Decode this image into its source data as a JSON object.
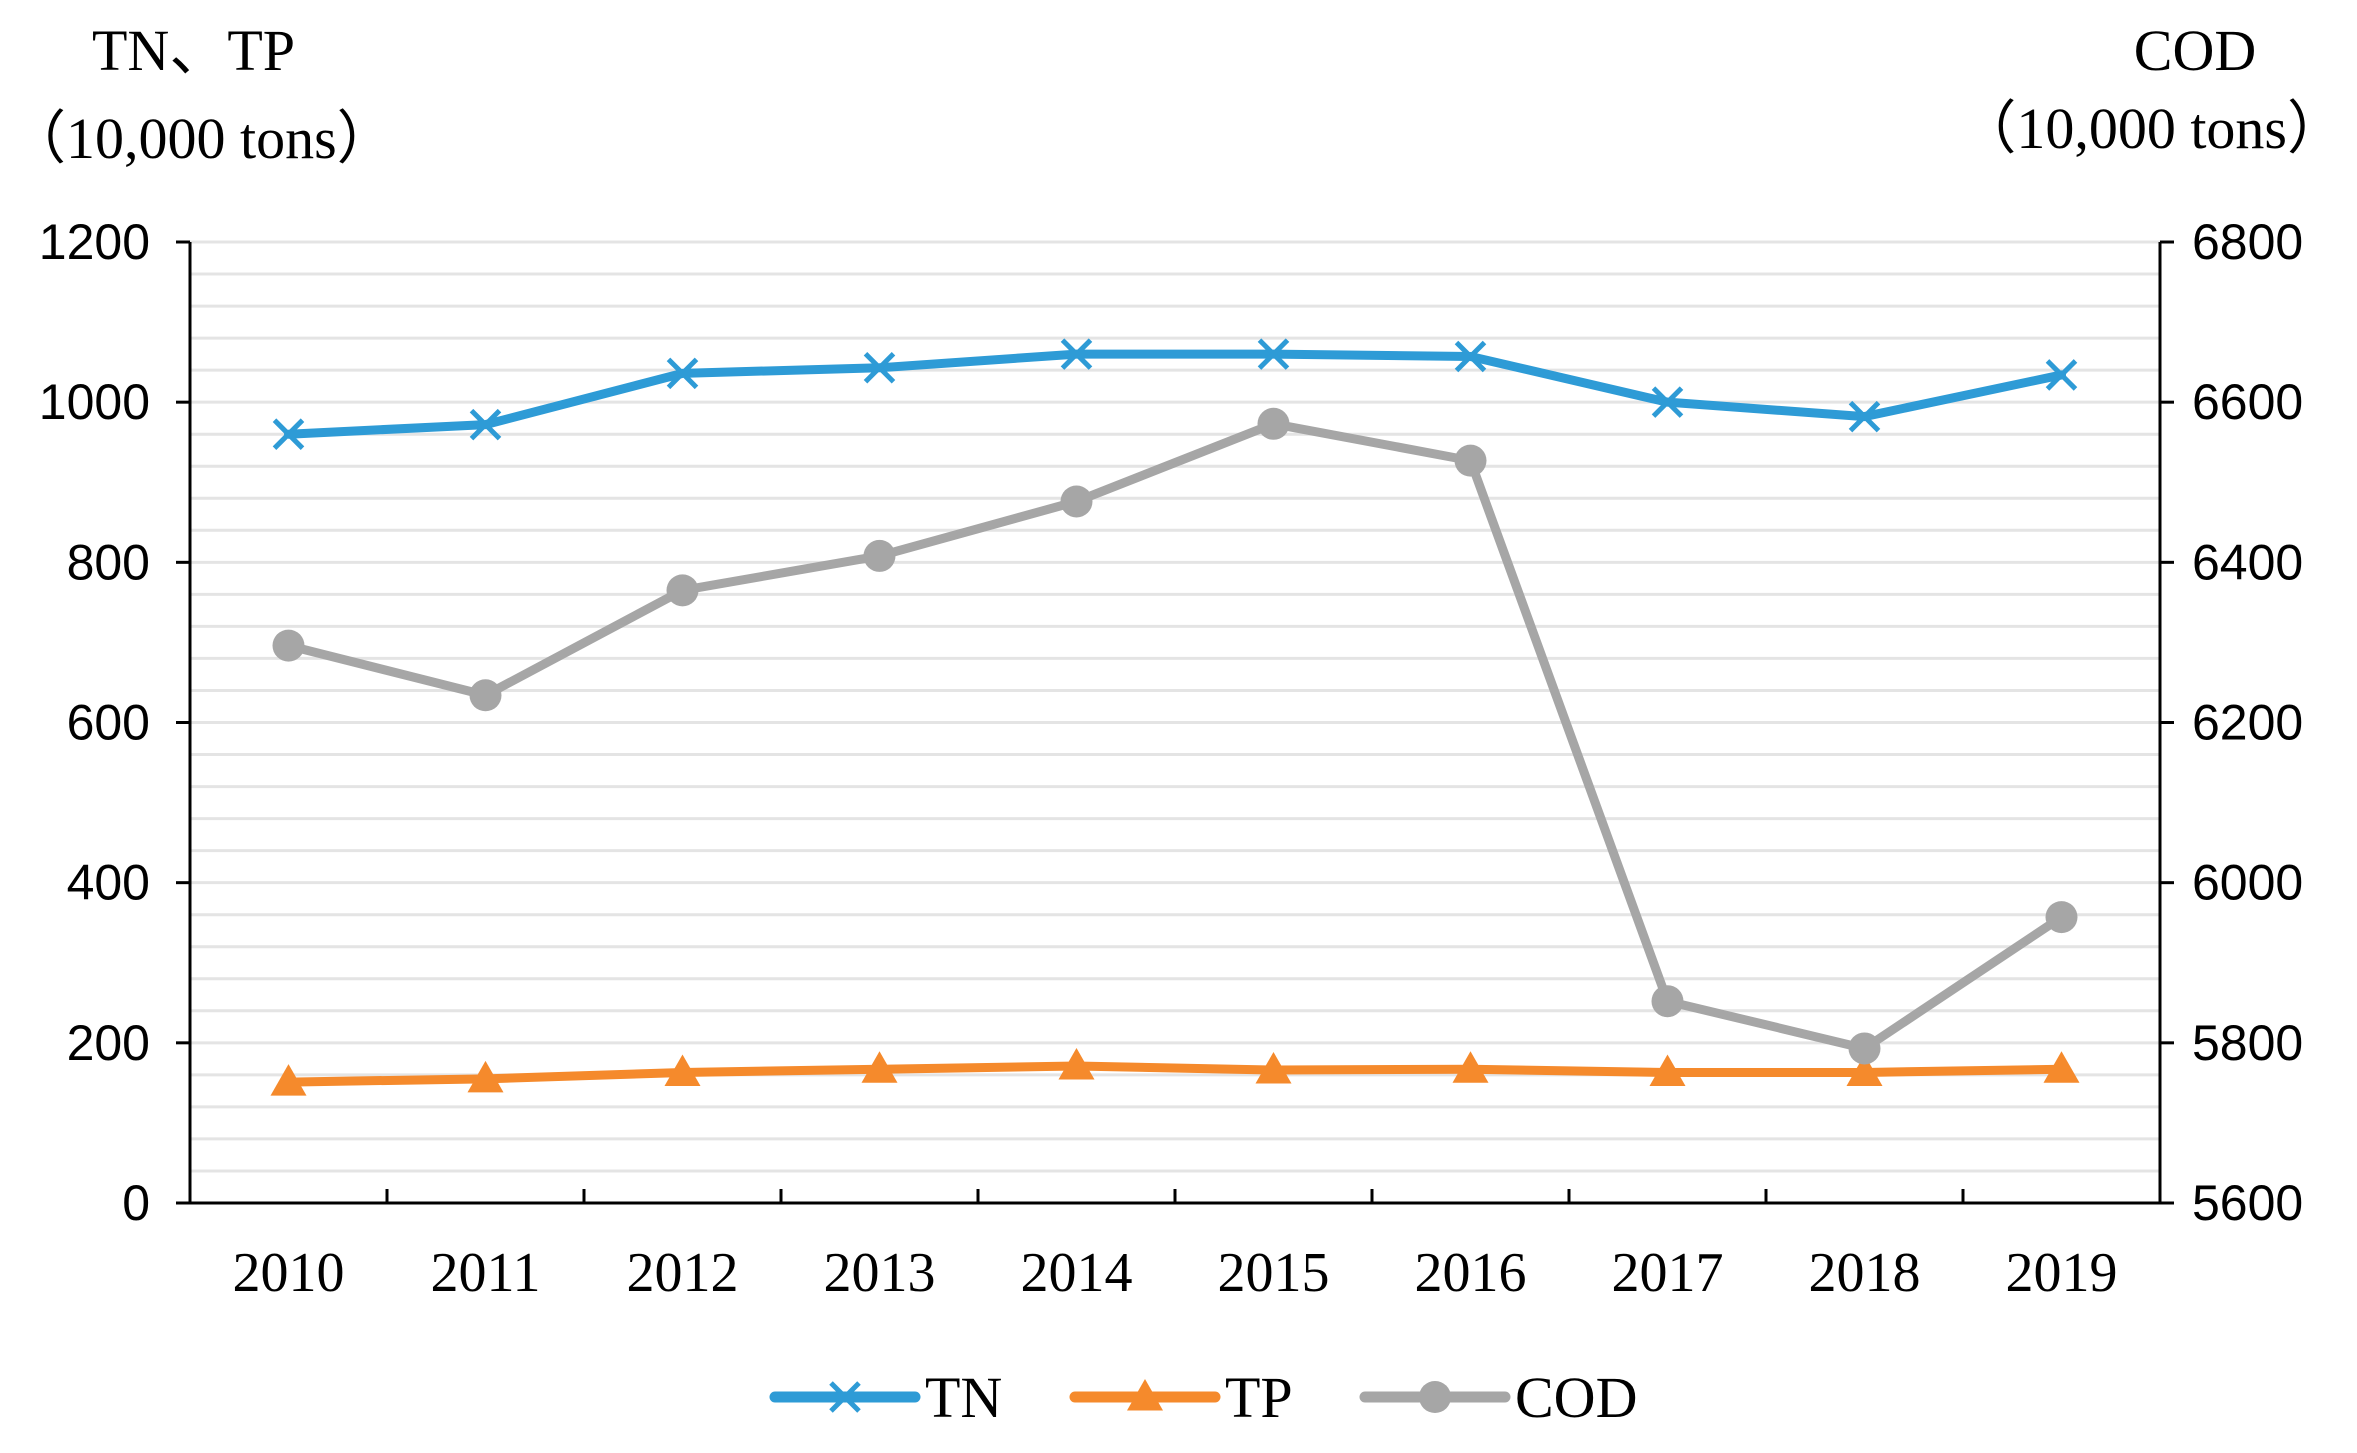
{
  "chart_data": {
    "type": "line",
    "categories": [
      "2010",
      "2011",
      "2012",
      "2013",
      "2014",
      "2015",
      "2016",
      "2017",
      "2018",
      "2019"
    ],
    "left_axis": {
      "title_line1": "TN、TP",
      "title_line2": "（10,000 tons）",
      "ylim": [
        0,
        1200
      ],
      "ticks": [
        "0",
        "200",
        "400",
        "600",
        "800",
        "1000",
        "1200"
      ]
    },
    "right_axis": {
      "title_line1": "COD",
      "title_line2": "（10,000 tons）",
      "ylim": [
        5600,
        6800
      ],
      "ticks": [
        "5600",
        "5800",
        "6000",
        "6200",
        "6400",
        "6600",
        "6800"
      ]
    },
    "grid": true,
    "legend_position": "bottom",
    "series": [
      {
        "name": "TN",
        "axis": "left",
        "color": "#2e9bd6",
        "marker": "x",
        "values": [
          960,
          972,
          1036,
          1043,
          1060,
          1060,
          1057,
          1000,
          982,
          1034
        ]
      },
      {
        "name": "TP",
        "axis": "left",
        "color": "#f58a2c",
        "marker": "triangle",
        "values": [
          151,
          155,
          163,
          167,
          171,
          166,
          167,
          163,
          163,
          167
        ]
      },
      {
        "name": "COD",
        "axis": "right",
        "color": "#a6a6a6",
        "marker": "circle",
        "values": [
          6296,
          6234,
          6365,
          6408,
          6476,
          6573,
          6527,
          5852,
          5793,
          5957
        ]
      }
    ]
  }
}
